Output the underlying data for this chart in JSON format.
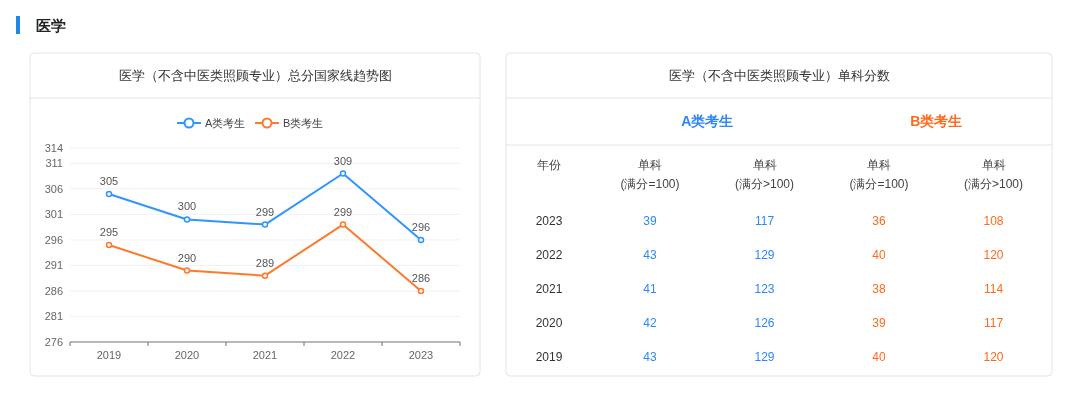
{
  "chart_data": [
    {
      "type": "line",
      "title": "医学（不含中医类照顾专业）总分国家线趋势图",
      "annotations": [
        "医学"
      ],
      "categories": [
        "2019",
        "2020",
        "2021",
        "2022",
        "2023"
      ],
      "series": [
        {
          "name": "A类考生",
          "color": "#2f95ff",
          "values": [
            305,
            300,
            299,
            309,
            296
          ]
        },
        {
          "name": "B类考生",
          "color": "#fc7a2c",
          "values": [
            295,
            290,
            289,
            299,
            286
          ]
        }
      ],
      "ylim": [
        276,
        314
      ],
      "yticks": [
        276,
        281,
        286,
        291,
        296,
        301,
        306,
        311,
        314
      ],
      "grid": "y",
      "legend": "top",
      "marker": "circle",
      "line_style": "solid",
      "data_labels": true
    },
    {
      "type": "heatmap",
      "title": "医学（不含中医类照顾专业）单科分数",
      "ylabel": "年份",
      "annotations": [
        "A类考生",
        "B类考生"
      ],
      "categories": [
        "单科\n(满分=100)",
        "单科\n(满分>100)",
        "单科\n(满分=100)",
        "单科\n(满分>100)"
      ],
      "y_categories": [
        "2023",
        "2022",
        "2021",
        "2020",
        "2019"
      ],
      "cells": [
        [
          39,
          117,
          36,
          108
        ],
        [
          43,
          129,
          40,
          120
        ],
        [
          41,
          123,
          38,
          114
        ],
        [
          42,
          126,
          39,
          117
        ],
        [
          43,
          129,
          40,
          120
        ]
      ],
      "colors": [
        "#2b86ff",
        "#2b86ff",
        "#ff6a1a",
        "#ff6a1a"
      ],
      "data_labels": true
    }
  ]
}
